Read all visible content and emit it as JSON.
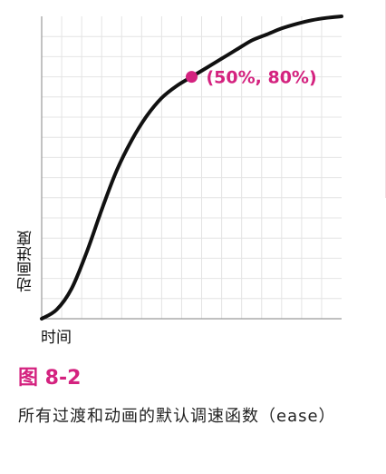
{
  "chart_data": {
    "type": "line",
    "title": "",
    "xlabel": "时间",
    "ylabel": "动画进度",
    "xlim": [
      0,
      100
    ],
    "ylim": [
      0,
      100
    ],
    "grid": true,
    "series": [
      {
        "x": [
          0,
          5,
          10,
          15,
          20,
          25,
          30,
          35,
          40,
          45,
          50,
          55,
          60,
          65,
          70,
          75,
          80,
          85,
          90,
          95,
          100
        ],
        "values": [
          0,
          3,
          10,
          22,
          36,
          49,
          59,
          67,
          73,
          77,
          80,
          83,
          86,
          89,
          92,
          94,
          96,
          97.5,
          98.7,
          99.5,
          100
        ],
        "color": "#111111"
      }
    ],
    "annotations": [
      {
        "x": 50,
        "y": 80,
        "text": "(50%, 80%)",
        "color": "#d4227f"
      }
    ]
  },
  "figure": {
    "number": "图 8-2",
    "caption": "所有过渡和动画的默认调速函数（ease）"
  }
}
